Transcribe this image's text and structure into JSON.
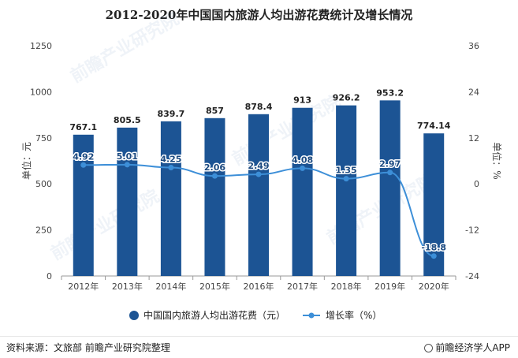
{
  "title": "2012-2020年中国国内旅游人均出游花费统计及增长情况",
  "source": "资料来源：文旅部 前瞻产业研究院整理",
  "brand": "前瞻经济学人APP",
  "watermark": "前瞻产业研究院",
  "colors": {
    "bar": "#1c5494",
    "line": "#3d8fd8",
    "axis": "#999999"
  },
  "chart_data": {
    "type": "bar",
    "categories": [
      "2012年",
      "2013年",
      "2014年",
      "2015年",
      "2016年",
      "2017年",
      "2018年",
      "2019年",
      "2020年"
    ],
    "series": [
      {
        "name": "中国国内旅游人均出游花费（元）",
        "type": "bar",
        "axis": "left",
        "values": [
          767.1,
          805.5,
          839.7,
          857,
          878.4,
          913,
          926.2,
          953.2,
          774.14
        ],
        "labels": [
          "767.1",
          "805.5",
          "839.7",
          "857",
          "878.4",
          "913",
          "926.2",
          "953.2",
          "774.14"
        ]
      },
      {
        "name": "增长率（%）",
        "type": "line",
        "axis": "right",
        "values": [
          4.92,
          5.01,
          4.25,
          2.06,
          2.49,
          4.08,
          1.35,
          2.97,
          -18.8
        ],
        "labels": [
          "4.92",
          "5.01",
          "4.25",
          "2.06",
          "2.49",
          "4.08",
          "1.35",
          "2.97",
          "-18.8"
        ]
      }
    ],
    "ylabel": "单位：元",
    "y2label": "单位：%",
    "ylim": [
      0,
      1250
    ],
    "yticks": [
      "0",
      "250",
      "500",
      "750",
      "1000",
      "1250"
    ],
    "y2lim": [
      -24,
      36
    ],
    "y2ticks": [
      "-24",
      "-12",
      "0",
      "12",
      "24",
      "36"
    ],
    "grid": false,
    "legend": "bottom"
  }
}
